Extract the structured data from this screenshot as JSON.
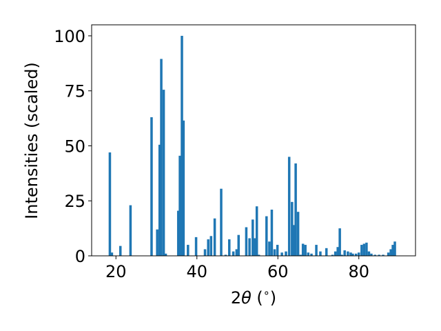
{
  "chart_data": {
    "type": "bar",
    "title": "",
    "xlabel_parts": [
      "2",
      "θ",
      " (",
      "∘",
      ")"
    ],
    "ylabel": "Intensities (scaled)",
    "xlim": [
      14,
      94
    ],
    "ylim": [
      0,
      105
    ],
    "xticks": [
      20,
      40,
      60,
      80
    ],
    "yticks": [
      0,
      25,
      50,
      75,
      100
    ],
    "bar_width": 0.6,
    "grid": false,
    "legend": "none",
    "bar_color": "#1f77b4",
    "x": [
      18.5,
      19.0,
      21.1,
      23.6,
      28.8,
      30.2,
      30.8,
      31.2,
      31.8,
      32.3,
      35.4,
      35.8,
      36.3,
      36.7,
      37.8,
      39.8,
      42.0,
      42.8,
      43.5,
      44.4,
      46.0,
      47.1,
      48.0,
      49.0,
      49.8,
      50.3,
      52.2,
      53.0,
      53.8,
      54.3,
      54.8,
      55.3,
      57.2,
      57.9,
      58.5,
      59.2,
      59.9,
      61.0,
      62.0,
      62.8,
      63.5,
      64.0,
      64.4,
      65.0,
      65.6,
      66.2,
      66.8,
      67.5,
      68.3,
      69.5,
      70.5,
      72.0,
      73.5,
      74.2,
      74.8,
      75.3,
      75.8,
      76.5,
      77.3,
      78.0,
      78.5,
      79.3,
      80.0,
      80.7,
      81.3,
      81.9,
      82.5,
      83.1,
      84.0,
      85.0,
      86.0,
      87.3,
      87.9,
      88.4,
      88.9
    ],
    "values": [
      47,
      1.5,
      4.5,
      23,
      63,
      12,
      50.5,
      89.5,
      75.5,
      1,
      20.5,
      45.5,
      100,
      61.5,
      5,
      8.5,
      3,
      7.5,
      9,
      17,
      30.5,
      0.5,
      7.5,
      2,
      3,
      9.5,
      13,
      8,
      16.5,
      8,
      22.5,
      0.5,
      18,
      6.5,
      21,
      3,
      5,
      1.5,
      2,
      45,
      24.5,
      14,
      42,
      20,
      0.5,
      5.5,
      5,
      1.5,
      1,
      5,
      2,
      3.5,
      0.5,
      2,
      4,
      12.5,
      0.5,
      2.5,
      2,
      1.5,
      1,
      1,
      1.5,
      5,
      5.5,
      6,
      2,
      1,
      0.5,
      0.5,
      0.5,
      1.5,
      3,
      5,
      6.5
    ]
  }
}
